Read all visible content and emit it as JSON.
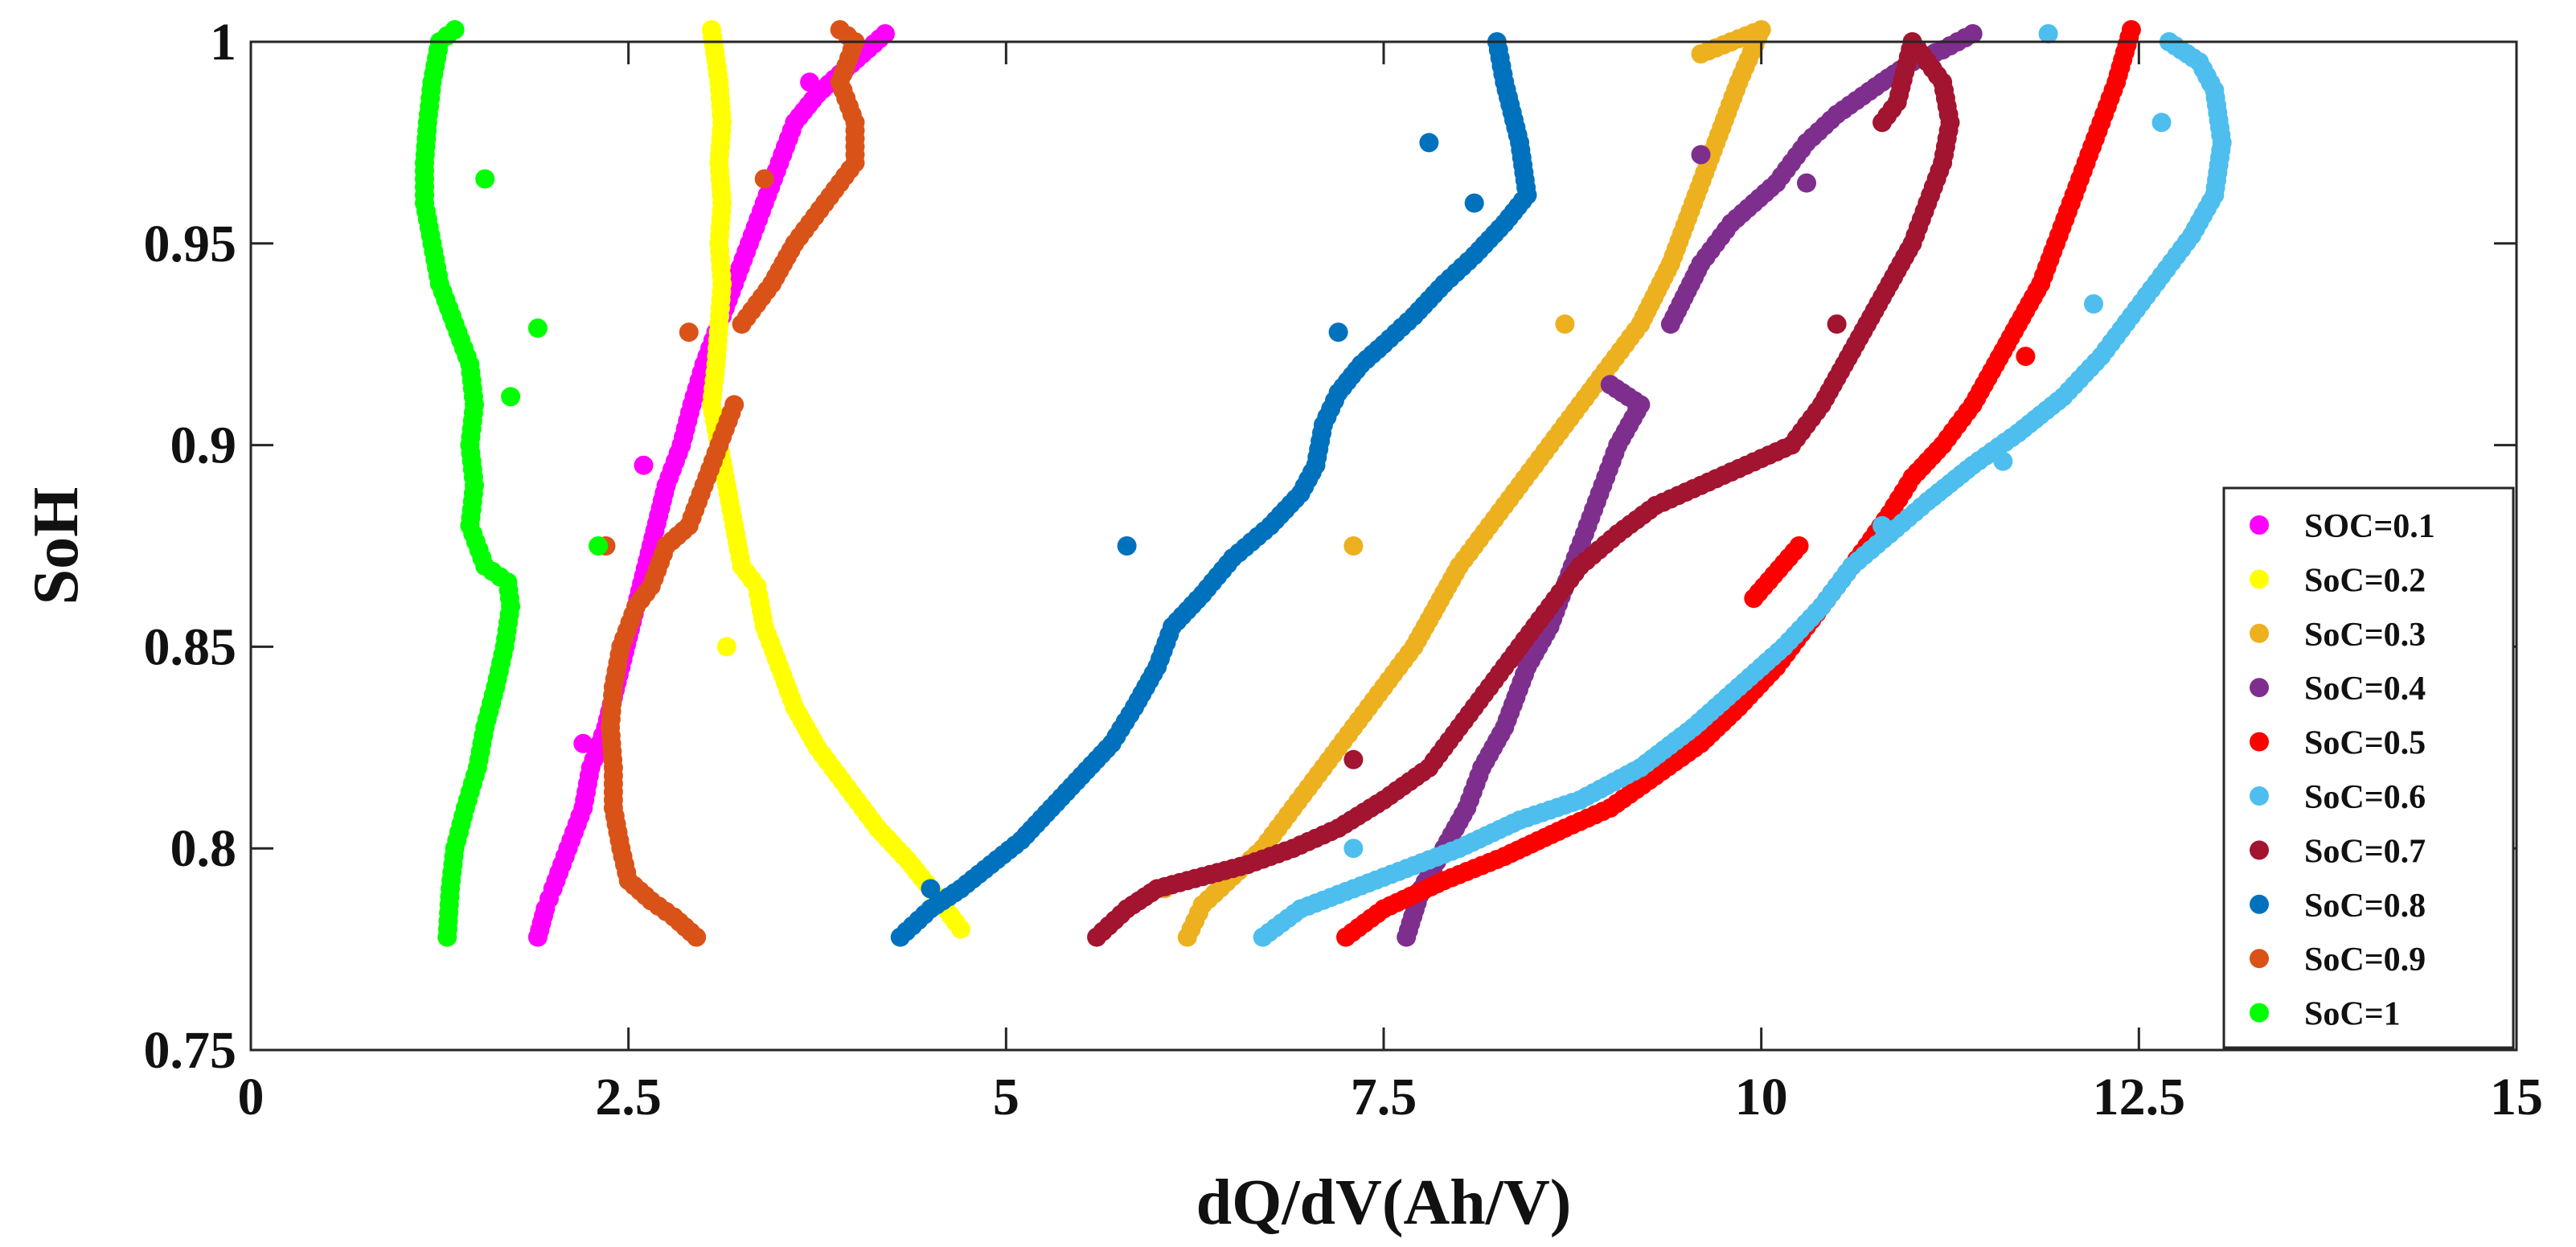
{
  "chart_data": {
    "type": "scatter",
    "title": "",
    "xlabel": "dQ/dV(Ah/V)",
    "ylabel": "SoH",
    "xlim": [
      0,
      15
    ],
    "ylim": [
      0.75,
      1.0
    ],
    "xticks": [
      0,
      2.5,
      5,
      7.5,
      10,
      12.5,
      15
    ],
    "xtick_labels": [
      "0",
      "2.5",
      "5",
      "7.5",
      "10",
      "12.5",
      "15"
    ],
    "yticks": [
      0.75,
      0.8,
      0.85,
      0.9,
      0.95,
      1.0
    ],
    "ytick_labels": [
      "0.75",
      "0.8",
      "0.85",
      "0.9",
      "0.95",
      "1"
    ],
    "grid": false,
    "legend_position": "bottom-right",
    "series": [
      {
        "name": "SOC=0.1",
        "color": "#ff00ff",
        "points": [
          [
            1.9,
            0.778
          ],
          [
            1.95,
            0.785
          ],
          [
            2.0,
            0.79
          ],
          [
            2.1,
            0.8
          ],
          [
            2.2,
            0.81
          ],
          [
            2.25,
            0.82
          ],
          [
            2.35,
            0.83
          ],
          [
            2.45,
            0.845
          ],
          [
            2.55,
            0.86
          ],
          [
            2.65,
            0.875
          ],
          [
            2.75,
            0.89
          ],
          [
            2.85,
            0.9
          ],
          [
            2.92,
            0.91
          ],
          [
            3.0,
            0.92
          ],
          [
            3.1,
            0.93
          ],
          [
            3.2,
            0.94
          ],
          [
            3.3,
            0.95
          ],
          [
            3.4,
            0.96
          ],
          [
            3.5,
            0.97
          ],
          [
            3.6,
            0.98
          ],
          [
            3.75,
            0.987
          ],
          [
            3.9,
            0.992
          ],
          [
            4.05,
            0.997
          ],
          [
            4.2,
            1.002
          ],
          [
            3.7,
            0.99
          ],
          [
            2.6,
            0.895
          ],
          [
            2.2,
            0.826
          ]
        ]
      },
      {
        "name": "SoC=0.2",
        "color": "#ffff00",
        "points": [
          [
            3.05,
            1.003
          ],
          [
            3.1,
            0.99
          ],
          [
            3.12,
            0.98
          ],
          [
            3.1,
            0.97
          ],
          [
            3.12,
            0.96
          ],
          [
            3.1,
            0.95
          ],
          [
            3.12,
            0.94
          ],
          [
            3.1,
            0.93
          ],
          [
            3.08,
            0.92
          ],
          [
            3.05,
            0.91
          ],
          [
            3.1,
            0.9
          ],
          [
            3.15,
            0.89
          ],
          [
            3.2,
            0.88
          ],
          [
            3.25,
            0.87
          ],
          [
            3.35,
            0.865
          ],
          [
            3.4,
            0.855
          ],
          [
            3.5,
            0.845
          ],
          [
            3.6,
            0.835
          ],
          [
            3.75,
            0.825
          ],
          [
            3.95,
            0.815
          ],
          [
            4.15,
            0.805
          ],
          [
            4.35,
            0.797
          ],
          [
            4.5,
            0.79
          ],
          [
            4.6,
            0.785
          ],
          [
            4.7,
            0.78
          ],
          [
            3.15,
            0.85
          ]
        ]
      },
      {
        "name": "SoC=0.3",
        "color": "#edb120",
        "points": [
          [
            6.2,
            0.778
          ],
          [
            6.3,
            0.786
          ],
          [
            6.5,
            0.793
          ],
          [
            6.7,
            0.8
          ],
          [
            6.9,
            0.81
          ],
          [
            7.1,
            0.82
          ],
          [
            7.3,
            0.83
          ],
          [
            7.5,
            0.84
          ],
          [
            7.7,
            0.85
          ],
          [
            7.85,
            0.86
          ],
          [
            8.0,
            0.87
          ],
          [
            8.2,
            0.88
          ],
          [
            8.4,
            0.89
          ],
          [
            8.6,
            0.9
          ],
          [
            8.8,
            0.91
          ],
          [
            9.0,
            0.92
          ],
          [
            9.2,
            0.93
          ],
          [
            9.4,
            0.945
          ],
          [
            9.55,
            0.96
          ],
          [
            9.7,
            0.975
          ],
          [
            9.85,
            0.99
          ],
          [
            10.0,
            1.003
          ],
          [
            9.6,
            0.997
          ],
          [
            7.3,
            0.875
          ],
          [
            8.7,
            0.93
          ],
          [
            6.05,
            0.79
          ]
        ]
      },
      {
        "name": "SoC=0.4",
        "color": "#7e2f8e",
        "points": [
          [
            7.65,
            0.778
          ],
          [
            7.75,
            0.79
          ],
          [
            7.9,
            0.8
          ],
          [
            8.05,
            0.81
          ],
          [
            8.15,
            0.82
          ],
          [
            8.3,
            0.83
          ],
          [
            8.45,
            0.845
          ],
          [
            8.6,
            0.855
          ],
          [
            8.75,
            0.87
          ],
          [
            8.85,
            0.88
          ],
          [
            8.95,
            0.89
          ],
          [
            9.05,
            0.9
          ],
          [
            9.2,
            0.91
          ],
          [
            9.0,
            0.915
          ],
          [
            9.4,
            0.93
          ],
          [
            9.6,
            0.945
          ],
          [
            9.8,
            0.955
          ],
          [
            10.1,
            0.965
          ],
          [
            10.3,
            0.975
          ],
          [
            10.5,
            0.982
          ],
          [
            10.8,
            0.99
          ],
          [
            11.0,
            0.995
          ],
          [
            11.2,
            0.998
          ],
          [
            11.4,
            1.002
          ],
          [
            9.6,
            0.972
          ],
          [
            10.3,
            0.965
          ]
        ]
      },
      {
        "name": "SoC=0.5",
        "color": "#ff0000",
        "points": [
          [
            7.25,
            0.778
          ],
          [
            7.5,
            0.785
          ],
          [
            7.9,
            0.792
          ],
          [
            8.3,
            0.798
          ],
          [
            8.7,
            0.805
          ],
          [
            9.0,
            0.81
          ],
          [
            9.3,
            0.818
          ],
          [
            9.6,
            0.826
          ],
          [
            9.85,
            0.835
          ],
          [
            10.1,
            0.845
          ],
          [
            10.3,
            0.855
          ],
          [
            10.5,
            0.865
          ],
          [
            10.7,
            0.875
          ],
          [
            10.85,
            0.883
          ],
          [
            11.0,
            0.892
          ],
          [
            11.2,
            0.9
          ],
          [
            11.4,
            0.91
          ],
          [
            11.55,
            0.92
          ],
          [
            11.7,
            0.93
          ],
          [
            11.85,
            0.94
          ],
          [
            11.95,
            0.95
          ],
          [
            12.05,
            0.96
          ],
          [
            12.15,
            0.97
          ],
          [
            12.25,
            0.98
          ],
          [
            12.35,
            0.99
          ],
          [
            12.45,
            1.003
          ],
          [
            10.25,
            0.875
          ],
          [
            9.95,
            0.862
          ],
          [
            11.75,
            0.922
          ]
        ]
      },
      {
        "name": "SoC=0.6",
        "color": "#4dbeee",
        "points": [
          [
            6.7,
            0.778
          ],
          [
            6.95,
            0.785
          ],
          [
            7.3,
            0.79
          ],
          [
            7.65,
            0.795
          ],
          [
            8.0,
            0.8
          ],
          [
            8.4,
            0.807
          ],
          [
            8.8,
            0.812
          ],
          [
            9.2,
            0.82
          ],
          [
            9.55,
            0.83
          ],
          [
            9.85,
            0.84
          ],
          [
            10.15,
            0.85
          ],
          [
            10.4,
            0.86
          ],
          [
            10.6,
            0.87
          ],
          [
            10.85,
            0.878
          ],
          [
            11.1,
            0.886
          ],
          [
            11.4,
            0.895
          ],
          [
            11.7,
            0.903
          ],
          [
            12.0,
            0.912
          ],
          [
            12.25,
            0.922
          ],
          [
            12.45,
            0.932
          ],
          [
            12.65,
            0.942
          ],
          [
            12.85,
            0.952
          ],
          [
            13.0,
            0.962
          ],
          [
            13.05,
            0.975
          ],
          [
            13.0,
            0.988
          ],
          [
            12.9,
            0.995
          ],
          [
            12.7,
            1.0
          ],
          [
            11.9,
            1.002
          ],
          [
            12.65,
            0.98
          ],
          [
            12.2,
            0.935
          ],
          [
            11.6,
            0.896
          ],
          [
            10.8,
            0.88
          ],
          [
            7.3,
            0.8
          ]
        ]
      },
      {
        "name": "SoC=0.7",
        "color": "#a2142f",
        "points": [
          [
            5.6,
            0.778
          ],
          [
            5.8,
            0.785
          ],
          [
            6.0,
            0.79
          ],
          [
            6.3,
            0.793
          ],
          [
            6.6,
            0.796
          ],
          [
            6.9,
            0.8
          ],
          [
            7.2,
            0.805
          ],
          [
            7.5,
            0.812
          ],
          [
            7.8,
            0.82
          ],
          [
            8.0,
            0.83
          ],
          [
            8.2,
            0.84
          ],
          [
            8.4,
            0.85
          ],
          [
            8.6,
            0.86
          ],
          [
            8.8,
            0.87
          ],
          [
            9.05,
            0.878
          ],
          [
            9.3,
            0.885
          ],
          [
            9.6,
            0.89
          ],
          [
            9.9,
            0.895
          ],
          [
            10.2,
            0.9
          ],
          [
            10.4,
            0.91
          ],
          [
            10.55,
            0.92
          ],
          [
            10.7,
            0.93
          ],
          [
            10.85,
            0.94
          ],
          [
            11.0,
            0.95
          ],
          [
            11.1,
            0.96
          ],
          [
            11.2,
            0.97
          ],
          [
            11.25,
            0.98
          ],
          [
            11.2,
            0.99
          ],
          [
            11.0,
            1.0
          ],
          [
            10.9,
            0.985
          ],
          [
            10.8,
            0.98
          ],
          [
            10.5,
            0.93
          ],
          [
            7.3,
            0.822
          ]
        ]
      },
      {
        "name": "SoC=0.8",
        "color": "#0072bd",
        "points": [
          [
            4.3,
            0.778
          ],
          [
            4.5,
            0.785
          ],
          [
            4.7,
            0.79
          ],
          [
            4.9,
            0.796
          ],
          [
            5.1,
            0.802
          ],
          [
            5.3,
            0.81
          ],
          [
            5.5,
            0.818
          ],
          [
            5.7,
            0.826
          ],
          [
            5.85,
            0.835
          ],
          [
            6.0,
            0.845
          ],
          [
            6.1,
            0.855
          ],
          [
            6.3,
            0.863
          ],
          [
            6.5,
            0.872
          ],
          [
            6.75,
            0.88
          ],
          [
            6.95,
            0.888
          ],
          [
            7.05,
            0.895
          ],
          [
            7.1,
            0.905
          ],
          [
            7.2,
            0.913
          ],
          [
            7.35,
            0.92
          ],
          [
            7.5,
            0.925
          ],
          [
            7.7,
            0.932
          ],
          [
            7.9,
            0.94
          ],
          [
            8.1,
            0.947
          ],
          [
            8.3,
            0.955
          ],
          [
            8.45,
            0.962
          ],
          [
            8.4,
            0.975
          ],
          [
            8.3,
            0.99
          ],
          [
            8.25,
            1.0
          ],
          [
            7.8,
            0.975
          ],
          [
            8.1,
            0.96
          ],
          [
            7.2,
            0.928
          ],
          [
            5.8,
            0.875
          ],
          [
            4.5,
            0.79
          ]
        ]
      },
      {
        "name": "SoC=0.9",
        "color": "#d95319",
        "points": [
          [
            2.95,
            0.778
          ],
          [
            2.8,
            0.783
          ],
          [
            2.65,
            0.787
          ],
          [
            2.5,
            0.792
          ],
          [
            2.45,
            0.8
          ],
          [
            2.4,
            0.81
          ],
          [
            2.4,
            0.82
          ],
          [
            2.38,
            0.83
          ],
          [
            2.4,
            0.84
          ],
          [
            2.45,
            0.85
          ],
          [
            2.55,
            0.86
          ],
          [
            2.65,
            0.865
          ],
          [
            2.75,
            0.875
          ],
          [
            2.9,
            0.88
          ],
          [
            3.0,
            0.89
          ],
          [
            3.1,
            0.9
          ],
          [
            3.2,
            0.91
          ],
          [
            3.25,
            0.93
          ],
          [
            3.45,
            0.94
          ],
          [
            3.6,
            0.95
          ],
          [
            3.8,
            0.96
          ],
          [
            4.0,
            0.97
          ],
          [
            4.0,
            0.98
          ],
          [
            3.9,
            0.99
          ],
          [
            4.0,
            1.0
          ],
          [
            3.9,
            1.003
          ],
          [
            3.4,
            0.966
          ],
          [
            2.9,
            0.928
          ],
          [
            2.35,
            0.875
          ]
        ]
      },
      {
        "name": "SoC=1",
        "color": "#00ff00",
        "points": [
          [
            1.3,
            0.778
          ],
          [
            1.32,
            0.79
          ],
          [
            1.35,
            0.8
          ],
          [
            1.42,
            0.81
          ],
          [
            1.5,
            0.82
          ],
          [
            1.55,
            0.83
          ],
          [
            1.62,
            0.84
          ],
          [
            1.68,
            0.85
          ],
          [
            1.72,
            0.86
          ],
          [
            1.7,
            0.866
          ],
          [
            1.55,
            0.87
          ],
          [
            1.45,
            0.88
          ],
          [
            1.48,
            0.89
          ],
          [
            1.45,
            0.9
          ],
          [
            1.48,
            0.91
          ],
          [
            1.45,
            0.92
          ],
          [
            1.35,
            0.93
          ],
          [
            1.25,
            0.94
          ],
          [
            1.2,
            0.95
          ],
          [
            1.15,
            0.96
          ],
          [
            1.15,
            0.97
          ],
          [
            1.17,
            0.98
          ],
          [
            1.2,
            0.99
          ],
          [
            1.25,
            1.0
          ],
          [
            1.35,
            1.003
          ],
          [
            1.55,
            0.966
          ],
          [
            1.9,
            0.929
          ],
          [
            1.72,
            0.912
          ],
          [
            2.3,
            0.875
          ]
        ]
      }
    ]
  }
}
